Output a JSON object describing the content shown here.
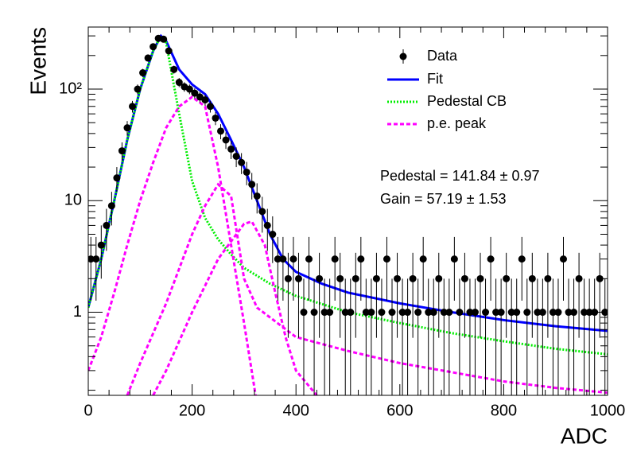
{
  "chart_data": {
    "type": "errorbar",
    "xlabel": "ADC",
    "ylabel": "Events",
    "log_y": true,
    "xlim": [
      0,
      1000
    ],
    "ylim": [
      0.18,
      360
    ],
    "xticks": [
      0,
      200,
      400,
      600,
      800,
      1000
    ],
    "yticks": [
      1,
      10,
      {
        "value": 100,
        "label": "10²"
      }
    ],
    "data": {
      "name": "Data",
      "color": "#000000",
      "x": [
        5,
        15,
        25,
        35,
        45,
        55,
        65,
        75,
        85,
        95,
        105,
        115,
        125,
        135,
        145,
        155,
        165,
        175,
        185,
        195,
        205,
        215,
        225,
        235,
        245,
        255,
        265,
        275,
        285,
        295,
        305,
        315,
        325,
        335,
        345,
        355,
        365,
        375,
        385,
        395,
        405,
        415,
        425,
        435,
        445,
        455,
        465,
        475,
        485,
        495,
        505,
        515,
        525,
        535,
        545,
        555,
        565,
        575,
        585,
        595,
        605,
        615,
        625,
        635,
        645,
        655,
        665,
        675,
        685,
        695,
        705,
        715,
        725,
        735,
        745,
        755,
        765,
        775,
        785,
        795,
        805,
        815,
        825,
        835,
        845,
        855,
        865,
        875,
        885,
        895,
        905,
        915,
        925,
        935,
        945,
        955,
        965,
        975,
        985,
        995
      ],
      "values": [
        3,
        3,
        4,
        6,
        9,
        16,
        28,
        45,
        70,
        100,
        140,
        190,
        240,
        285,
        280,
        220,
        150,
        115,
        105,
        100,
        92,
        85,
        80,
        70,
        55,
        42,
        35,
        29,
        25,
        22,
        18,
        14,
        11,
        8,
        6,
        5,
        3,
        3,
        2,
        3,
        2,
        1,
        3,
        1,
        2,
        1,
        1,
        3,
        2,
        1,
        1,
        2,
        3,
        1,
        1,
        2,
        1,
        3,
        1,
        2,
        1,
        1,
        2,
        1,
        3,
        1,
        1,
        2,
        1,
        1,
        3,
        1,
        2,
        1,
        1,
        2,
        1,
        3,
        1,
        1,
        2,
        1,
        1,
        3,
        1,
        2,
        1,
        1,
        2,
        1,
        1,
        3,
        1,
        1,
        2,
        1,
        1,
        1,
        2,
        1
      ],
      "errors": [
        1.73,
        1.73,
        2,
        2.45,
        3,
        4,
        5.29,
        6.71,
        8.37,
        10,
        11.83,
        13.78,
        15.49,
        16.88,
        16.73,
        14.83,
        12.25,
        10.72,
        10.25,
        10,
        9.59,
        9.22,
        8.94,
        8.37,
        7.42,
        6.48,
        5.92,
        5.39,
        5,
        4.69,
        4.24,
        3.74,
        3.32,
        2.83,
        2.45,
        2.24,
        1.73,
        1.73,
        1.41,
        1.73,
        1.41,
        1,
        1.73,
        1,
        1.41,
        1,
        1,
        1.73,
        1.41,
        1,
        1,
        1.41,
        1.73,
        1,
        1,
        1.41,
        1,
        1.73,
        1,
        1.41,
        1,
        1,
        1.41,
        1,
        1.73,
        1,
        1,
        1.41,
        1,
        1,
        1.73,
        1,
        1.41,
        1,
        1,
        1.41,
        1,
        1.73,
        1,
        1,
        1.41,
        1,
        1,
        1.73,
        1,
        1.41,
        1,
        1,
        1.41,
        1,
        1,
        1.73,
        1,
        1,
        1.41,
        1,
        1,
        1,
        1.41,
        1
      ]
    },
    "series": [
      {
        "name": "Fit",
        "color": "#0000ff",
        "style": "solid",
        "x": [
          0,
          25,
          50,
          75,
          100,
          125,
          140,
          150,
          175,
          200,
          225,
          250,
          275,
          300,
          325,
          350,
          375,
          400,
          450,
          500,
          600,
          700,
          800,
          900,
          1000
        ],
        "values": [
          1.1,
          3,
          10,
          35,
          100,
          220,
          300,
          270,
          150,
          110,
          90,
          60,
          35,
          20,
          10,
          5,
          3,
          2.3,
          1.8,
          1.5,
          1.2,
          1.0,
          0.85,
          0.75,
          0.68
        ]
      },
      {
        "name": "Pedestal CB",
        "color": "#00ee00",
        "style": "dotted",
        "x": [
          0,
          25,
          50,
          75,
          100,
          125,
          140,
          150,
          175,
          200,
          225,
          250,
          275,
          300,
          350,
          400,
          500,
          600,
          700,
          800,
          900,
          1000
        ],
        "values": [
          1.1,
          3,
          10,
          35,
          100,
          220,
          300,
          260,
          60,
          15,
          7,
          4.5,
          3.3,
          2.5,
          1.8,
          1.4,
          1.0,
          0.8,
          0.65,
          0.55,
          0.47,
          0.42
        ]
      },
      {
        "name": "p.e. peak",
        "color": "#ff00ff",
        "style": "dashed",
        "x": [
          0,
          25,
          50,
          75,
          100,
          125,
          150,
          175,
          200,
          225,
          250,
          275,
          300,
          325
        ],
        "values": [
          0.3,
          0.6,
          1.5,
          4,
          10,
          22,
          45,
          70,
          85,
          70,
          20,
          4,
          0.8,
          0.15
        ]
      },
      {
        "color": "#ff00ff",
        "style": "dashed",
        "x": [
          75,
          100,
          150,
          200,
          225,
          250,
          275,
          300,
          325,
          350,
          400,
          500,
          600,
          700,
          800,
          900,
          1000
        ],
        "values": [
          0.18,
          0.35,
          1.2,
          5,
          9,
          14,
          11,
          2,
          1.1,
          0.9,
          0.6,
          0.45,
          0.35,
          0.29,
          0.24,
          0.21,
          0.19
        ]
      },
      {
        "color": "#ff00ff",
        "style": "dashed",
        "x": [
          125,
          150,
          200,
          250,
          300,
          315,
          340,
          360,
          380,
          400,
          440
        ],
        "values": [
          0.18,
          0.3,
          1,
          3,
          6.2,
          6.5,
          4,
          1.5,
          0.6,
          0.3,
          0.18
        ]
      }
    ],
    "annotations": [
      "Pedestal = 141.84 ± 0.97",
      "Gain = 57.19 ± 1.53"
    ]
  }
}
